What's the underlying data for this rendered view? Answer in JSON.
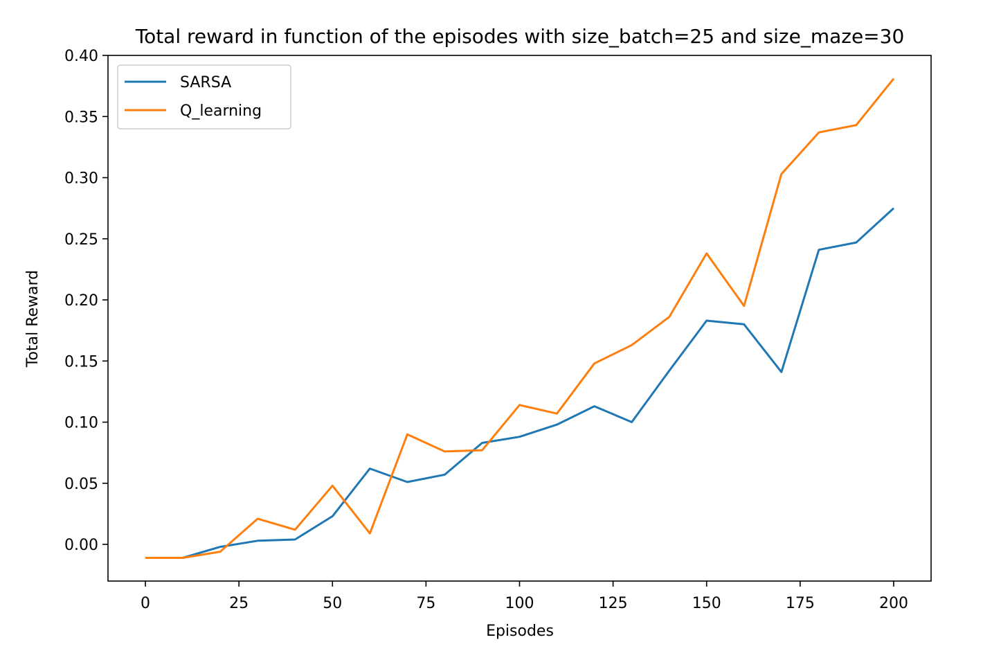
{
  "chart_data": {
    "type": "line",
    "title": "Total reward in function of the episodes with size_batch=25 and size_maze=30",
    "xlabel": "Episodes",
    "ylabel": "Total Reward",
    "x": [
      0,
      10,
      20,
      30,
      40,
      50,
      60,
      70,
      80,
      90,
      100,
      110,
      120,
      130,
      140,
      150,
      160,
      170,
      180,
      190,
      200
    ],
    "series": [
      {
        "name": "SARSA",
        "color": "#1f77b4",
        "values": [
          -0.011,
          -0.011,
          -0.002,
          0.003,
          0.004,
          0.023,
          0.062,
          0.051,
          0.057,
          0.083,
          0.088,
          0.098,
          0.113,
          0.1,
          0.142,
          0.183,
          0.18,
          0.141,
          0.241,
          0.247,
          0.275
        ]
      },
      {
        "name": "Q_learning",
        "color": "#ff7f0e",
        "values": [
          -0.011,
          -0.011,
          -0.006,
          0.021,
          0.012,
          0.048,
          0.009,
          0.09,
          0.076,
          0.077,
          0.114,
          0.107,
          0.148,
          0.163,
          0.186,
          0.238,
          0.195,
          0.303,
          0.337,
          0.343,
          0.381
        ]
      }
    ],
    "xlim": [
      -10,
      210
    ],
    "ylim": [
      -0.03,
      0.4
    ],
    "xticks": [
      0,
      25,
      50,
      75,
      100,
      125,
      150,
      175,
      200
    ],
    "xtick_labels": [
      "0",
      "25",
      "50",
      "75",
      "100",
      "125",
      "150",
      "175",
      "200"
    ],
    "yticks": [
      0.0,
      0.05,
      0.1,
      0.15,
      0.2,
      0.25,
      0.3,
      0.35,
      0.4
    ],
    "ytick_labels": [
      "0.00",
      "0.05",
      "0.10",
      "0.15",
      "0.20",
      "0.25",
      "0.30",
      "0.35",
      "0.40"
    ],
    "grid": false,
    "legend_position": "top-left"
  }
}
